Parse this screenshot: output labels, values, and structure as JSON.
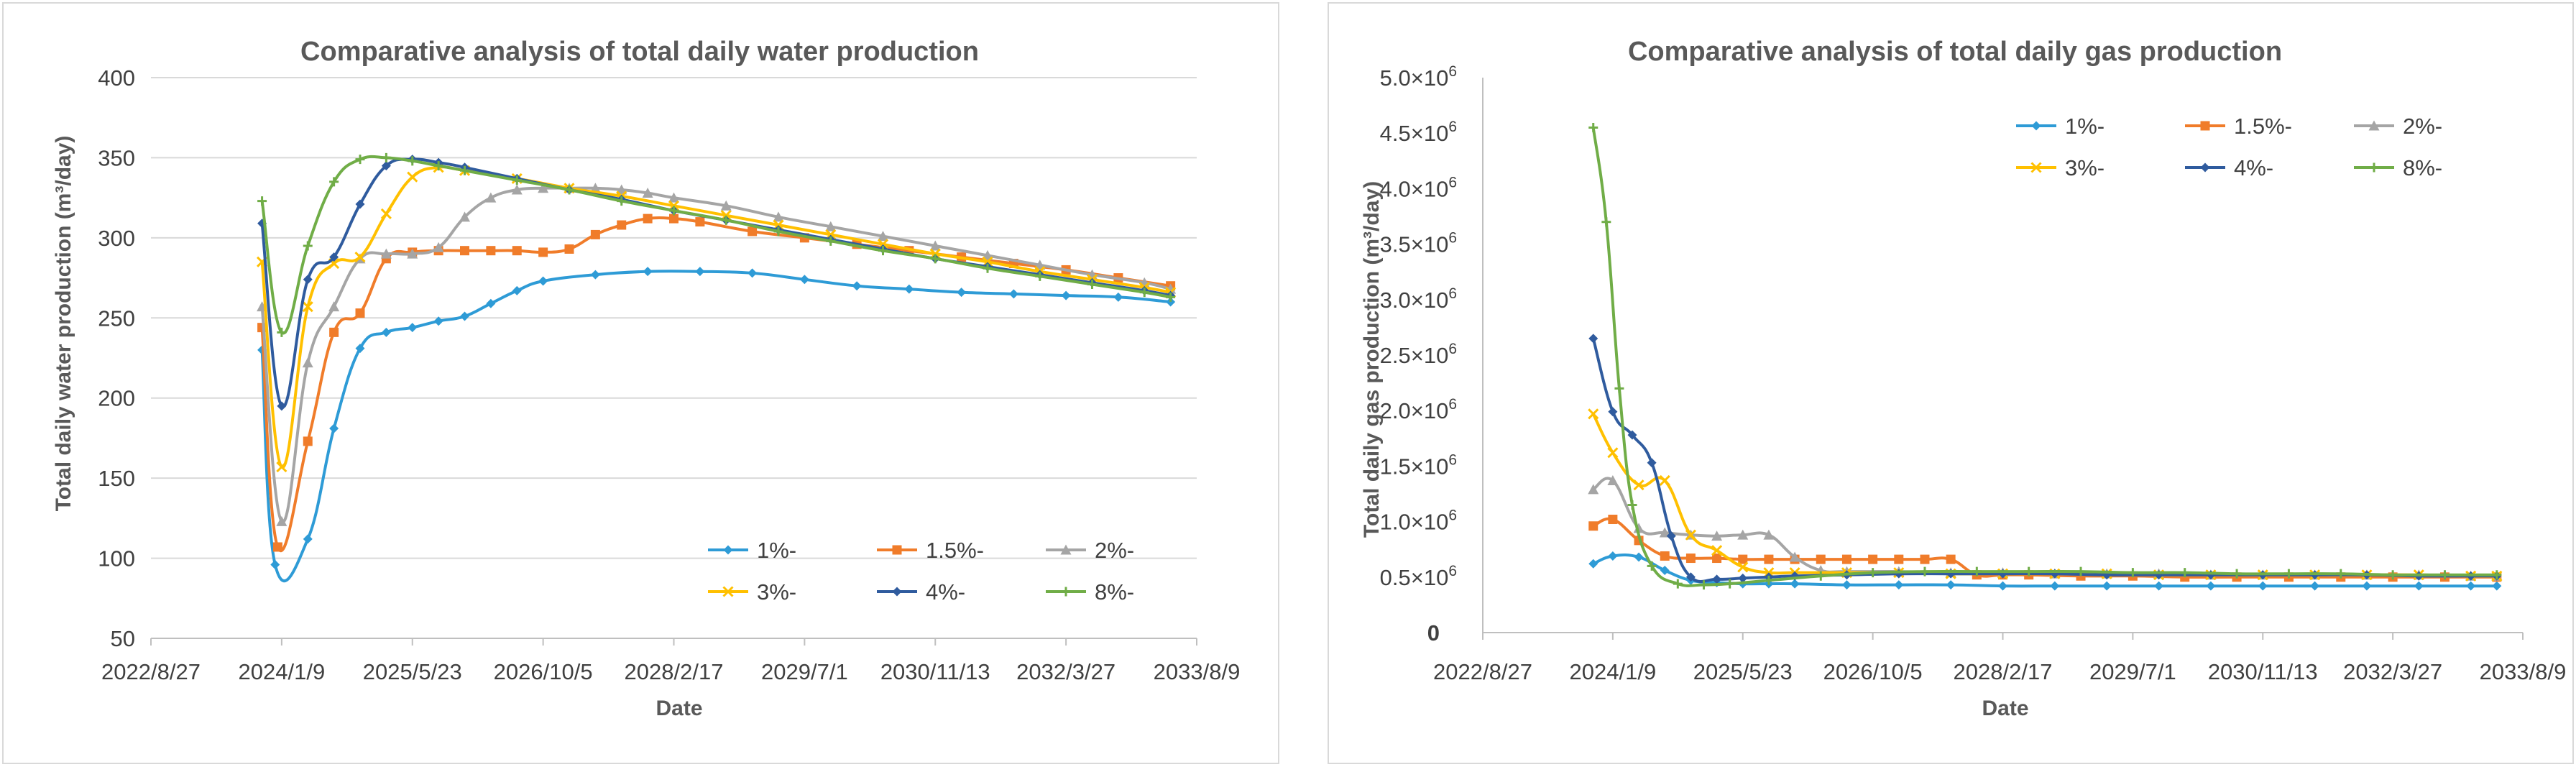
{
  "chart_data": [
    {
      "type": "line",
      "title": "Comparative analysis of total daily water production",
      "xlabel": "Date",
      "ylabel": "Total daily water production (m³/day)",
      "ylim": [
        50,
        400
      ],
      "yticks": [
        "50",
        "100",
        "150",
        "200",
        "250",
        "300",
        "350",
        "400"
      ],
      "xticks": [
        "2022/8/27",
        "2024/1/9",
        "2025/5/23",
        "2026/10/5",
        "2028/2/17",
        "2029/7/1",
        "2030/11/13",
        "2032/3/27",
        "2033/8/9"
      ],
      "xlim": [
        0,
        8
      ],
      "grid": "horizontal",
      "legend_position": "bottom-right",
      "series": [
        {
          "name": "1%-",
          "color": "#2e9bd6",
          "marker": "diamond",
          "smooth": true,
          "x": [
            0.85,
            0.95,
            1.2,
            1.4,
            1.6,
            1.8,
            2.0,
            2.2,
            2.4,
            2.6,
            2.8,
            3.0,
            3.4,
            3.8,
            4.2,
            4.6,
            5.0,
            5.4,
            5.8,
            6.2,
            6.6,
            7.0,
            7.4,
            7.8
          ],
          "y": [
            230,
            96,
            112,
            181,
            231,
            241,
            244,
            248,
            251,
            259,
            267,
            273,
            277,
            279,
            279,
            278,
            274,
            270,
            268,
            266,
            265,
            264,
            263,
            260
          ]
        },
        {
          "name": "1.5%-",
          "color": "#f07c2a",
          "marker": "square",
          "smooth": true,
          "x": [
            0.85,
            0.97,
            1.2,
            1.4,
            1.6,
            1.8,
            2.0,
            2.2,
            2.4,
            2.6,
            2.8,
            3.0,
            3.2,
            3.4,
            3.6,
            3.8,
            4.0,
            4.2,
            4.6,
            5.0,
            5.4,
            5.8,
            6.2,
            6.6,
            7.0,
            7.4,
            7.8
          ],
          "y": [
            244,
            107,
            173,
            241,
            253,
            287,
            291,
            292,
            292,
            292,
            292,
            291,
            293,
            302,
            308,
            312,
            312,
            310,
            304,
            300,
            296,
            292,
            288,
            284,
            280,
            275,
            270
          ]
        },
        {
          "name": "2%-",
          "color": "#a5a5a5",
          "marker": "triangle",
          "smooth": true,
          "x": [
            0.85,
            1.0,
            1.2,
            1.4,
            1.6,
            1.8,
            2.0,
            2.2,
            2.4,
            2.6,
            2.8,
            3.0,
            3.2,
            3.4,
            3.6,
            3.8,
            4.0,
            4.4,
            4.8,
            5.2,
            5.6,
            6.0,
            6.4,
            6.8,
            7.2,
            7.6,
            7.8
          ],
          "y": [
            257,
            123,
            222,
            257,
            287,
            290,
            290,
            294,
            313,
            325,
            330,
            331,
            331,
            331,
            330,
            328,
            325,
            320,
            313,
            307,
            301,
            295,
            289,
            283,
            277,
            272,
            268
          ]
        },
        {
          "name": "3%-",
          "color": "#ffc000",
          "marker": "x",
          "smooth": true,
          "x": [
            0.85,
            1.0,
            1.2,
            1.4,
            1.6,
            1.8,
            2.0,
            2.2,
            2.4,
            2.8,
            3.2,
            3.6,
            4.0,
            4.4,
            4.8,
            5.2,
            5.6,
            6.0,
            6.4,
            6.8,
            7.2,
            7.6,
            7.8
          ],
          "y": [
            285,
            157,
            257,
            284,
            288,
            315,
            338,
            344,
            342,
            337,
            331,
            326,
            320,
            314,
            308,
            302,
            296,
            290,
            285,
            279,
            274,
            269,
            266
          ]
        },
        {
          "name": "4%-",
          "color": "#2f5b9e",
          "marker": "diamond",
          "smooth": true,
          "x": [
            0.85,
            1.0,
            1.2,
            1.4,
            1.6,
            1.8,
            2.0,
            2.2,
            2.4,
            2.8,
            3.2,
            3.6,
            4.0,
            4.4,
            4.8,
            5.2,
            5.6,
            6.0,
            6.4,
            6.8,
            7.2,
            7.6,
            7.8
          ],
          "y": [
            309,
            195,
            274,
            288,
            321,
            345,
            349,
            347,
            344,
            337,
            330,
            324,
            317,
            311,
            305,
            299,
            293,
            287,
            282,
            277,
            272,
            267,
            264
          ]
        },
        {
          "name": "8%-",
          "color": "#70ad47",
          "marker": "plus",
          "smooth": true,
          "x": [
            0.85,
            1.0,
            1.2,
            1.4,
            1.6,
            1.8,
            2.0,
            2.2,
            2.4,
            2.8,
            3.2,
            3.6,
            4.0,
            4.4,
            4.8,
            5.2,
            5.6,
            6.0,
            6.4,
            6.8,
            7.2,
            7.6,
            7.8
          ],
          "y": [
            323,
            241,
            295,
            335,
            349,
            350,
            348,
            345,
            342,
            336,
            330,
            323,
            317,
            311,
            304,
            298,
            292,
            287,
            281,
            276,
            271,
            266,
            263
          ]
        }
      ]
    },
    {
      "type": "line",
      "title": "Comparative analysis of total daily gas production",
      "xlabel": "Date",
      "ylabel": "Total daily gas production (m³/day)",
      "ylim": [
        0,
        5000000
      ],
      "yticks": [
        {
          "value": 0,
          "mant": "0",
          "exp": ""
        },
        {
          "value": 500000,
          "mant": "0.5×10",
          "exp": "6"
        },
        {
          "value": 1000000,
          "mant": "1.0×10",
          "exp": "6"
        },
        {
          "value": 1500000,
          "mant": "1.5×10",
          "exp": "6"
        },
        {
          "value": 2000000,
          "mant": "2.0×10",
          "exp": "6"
        },
        {
          "value": 2500000,
          "mant": "2.5×10",
          "exp": "6"
        },
        {
          "value": 3000000,
          "mant": "3.0×10",
          "exp": "6"
        },
        {
          "value": 3500000,
          "mant": "3.5×10",
          "exp": "6"
        },
        {
          "value": 4000000,
          "mant": "4.0×10",
          "exp": "6"
        },
        {
          "value": 4500000,
          "mant": "4.5×10",
          "exp": "6"
        },
        {
          "value": 5000000,
          "mant": "5.0×10",
          "exp": "6"
        }
      ],
      "xticks": [
        "2022/8/27",
        "2024/1/9",
        "2025/5/23",
        "2026/10/5",
        "2028/2/17",
        "2029/7/1",
        "2030/11/13",
        "2032/3/27",
        "2033/8/9"
      ],
      "xlim": [
        0,
        8
      ],
      "grid": "none",
      "legend_position": "top-right",
      "series": [
        {
          "name": "1%-",
          "color": "#2e9bd6",
          "marker": "diamond",
          "smooth": true,
          "x": [
            0.85,
            1.0,
            1.2,
            1.4,
            1.6,
            1.8,
            2.0,
            2.2,
            2.4,
            2.8,
            3.2,
            3.6,
            4.0,
            4.4,
            4.8,
            5.2,
            5.6,
            6.0,
            6.4,
            6.8,
            7.2,
            7.6,
            7.8
          ],
          "y": [
            620000,
            690000,
            680000,
            560000,
            470000,
            450000,
            440000,
            440000,
            440000,
            430000,
            430000,
            430000,
            420000,
            420000,
            420000,
            420000,
            420000,
            420000,
            420000,
            420000,
            420000,
            420000,
            420000
          ]
        },
        {
          "name": "1.5%-",
          "color": "#f07c2a",
          "marker": "square",
          "smooth": true,
          "x": [
            0.85,
            1.0,
            1.2,
            1.4,
            1.6,
            1.8,
            2.0,
            2.2,
            2.4,
            2.6,
            2.8,
            3.0,
            3.2,
            3.4,
            3.6,
            3.8,
            4.0,
            4.2,
            4.6,
            5.0,
            5.4,
            5.8,
            6.2,
            6.6,
            7.0,
            7.4,
            7.8
          ],
          "y": [
            960000,
            1020000,
            830000,
            690000,
            670000,
            670000,
            660000,
            660000,
            660000,
            660000,
            660000,
            660000,
            660000,
            660000,
            660000,
            520000,
            520000,
            520000,
            510000,
            510000,
            500000,
            500000,
            500000,
            500000,
            500000,
            500000,
            500000
          ]
        },
        {
          "name": "2%-",
          "color": "#a5a5a5",
          "marker": "triangle",
          "smooth": true,
          "x": [
            0.85,
            1.0,
            1.2,
            1.4,
            1.6,
            1.8,
            2.0,
            2.2,
            2.4,
            2.6,
            2.8,
            3.2,
            3.6,
            4.0,
            4.4,
            4.8,
            5.2,
            5.6,
            6.0,
            6.4,
            6.8,
            7.2,
            7.6,
            7.8
          ],
          "y": [
            1290000,
            1370000,
            940000,
            900000,
            880000,
            870000,
            880000,
            880000,
            680000,
            560000,
            550000,
            550000,
            540000,
            540000,
            530000,
            530000,
            530000,
            520000,
            520000,
            520000,
            520000,
            520000,
            510000,
            510000
          ]
        },
        {
          "name": "3%-",
          "color": "#ffc000",
          "marker": "x",
          "smooth": true,
          "x": [
            0.85,
            1.0,
            1.2,
            1.4,
            1.6,
            1.8,
            2.0,
            2.2,
            2.4,
            2.8,
            3.2,
            3.6,
            4.0,
            4.4,
            4.8,
            5.2,
            5.6,
            6.0,
            6.4,
            6.8,
            7.2,
            7.6,
            7.8
          ],
          "y": [
            1970000,
            1620000,
            1330000,
            1370000,
            880000,
            740000,
            590000,
            540000,
            540000,
            540000,
            540000,
            530000,
            530000,
            530000,
            530000,
            520000,
            520000,
            520000,
            520000,
            520000,
            520000,
            510000,
            510000
          ]
        },
        {
          "name": "4%-",
          "color": "#2f5b9e",
          "marker": "diamond",
          "smooth": true,
          "x": [
            0.85,
            1.0,
            1.15,
            1.3,
            1.45,
            1.6,
            1.8,
            2.0,
            2.2,
            2.4,
            2.8,
            3.2,
            3.6,
            4.0,
            4.4,
            4.8,
            5.2,
            5.6,
            6.0,
            6.4,
            6.8,
            7.2,
            7.6,
            7.8
          ],
          "y": [
            2650000,
            1990000,
            1780000,
            1530000,
            870000,
            500000,
            480000,
            490000,
            500000,
            510000,
            520000,
            530000,
            530000,
            530000,
            530000,
            520000,
            520000,
            520000,
            520000,
            520000,
            520000,
            510000,
            510000,
            510000
          ]
        },
        {
          "name": "8%-",
          "color": "#70ad47",
          "marker": "plus",
          "smooth": true,
          "x": [
            0.85,
            0.95,
            1.05,
            1.15,
            1.3,
            1.5,
            1.7,
            1.9,
            2.2,
            2.6,
            3.0,
            3.4,
            3.8,
            4.2,
            4.6,
            5.0,
            5.4,
            5.8,
            6.2,
            6.6,
            7.0,
            7.4,
            7.8
          ],
          "y": [
            4550000,
            3700000,
            2200000,
            1150000,
            600000,
            440000,
            430000,
            440000,
            470000,
            510000,
            540000,
            550000,
            550000,
            550000,
            550000,
            540000,
            540000,
            530000,
            530000,
            530000,
            520000,
            520000,
            520000
          ]
        }
      ]
    }
  ]
}
